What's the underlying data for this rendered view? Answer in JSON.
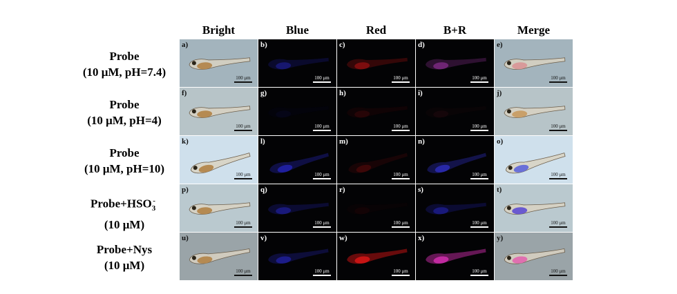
{
  "columns": [
    "Bright",
    "Blue",
    "Red",
    "B+R",
    "Merge"
  ],
  "rows": [
    {
      "label_line1": "Probe",
      "label_line2": "(10 μM, pH=7.4)",
      "panels": [
        "a)",
        "b)",
        "c)",
        "d)",
        "e)"
      ]
    },
    {
      "label_line1": "Probe",
      "label_line2": "(10 μM, pH=4)",
      "panels": [
        "f)",
        "g)",
        "h)",
        "i)",
        "j)"
      ]
    },
    {
      "label_line1": "Probe",
      "label_line2": "(10 μM, pH=10)",
      "panels": [
        "k)",
        "l)",
        "m)",
        "n)",
        "o)"
      ]
    },
    {
      "label_line1_main": "Probe+HSO",
      "label_line1_sub": "3",
      "label_line1_sup": "-",
      "label_line2": "(10 μM)",
      "panels": [
        "p)",
        "q)",
        "r)",
        "s)",
        "t)"
      ]
    },
    {
      "label_line1": "Probe+Nys",
      "label_line2": "(10 μM)",
      "panels": [
        "u)",
        "v)",
        "w)",
        "x)",
        "y)"
      ]
    }
  ],
  "scale_bar_label": "100 μm",
  "colors": {
    "bright_bg": [
      "#a3b4bd",
      "#b7c4c8",
      "#cfe0ec",
      "#bac9cf",
      "#9aa4a8"
    ],
    "dark_bg": "#030305",
    "blue_signal": "#2b2bd8",
    "red_signal": "#c61414",
    "magenta_signal": "#c02aa0"
  }
}
